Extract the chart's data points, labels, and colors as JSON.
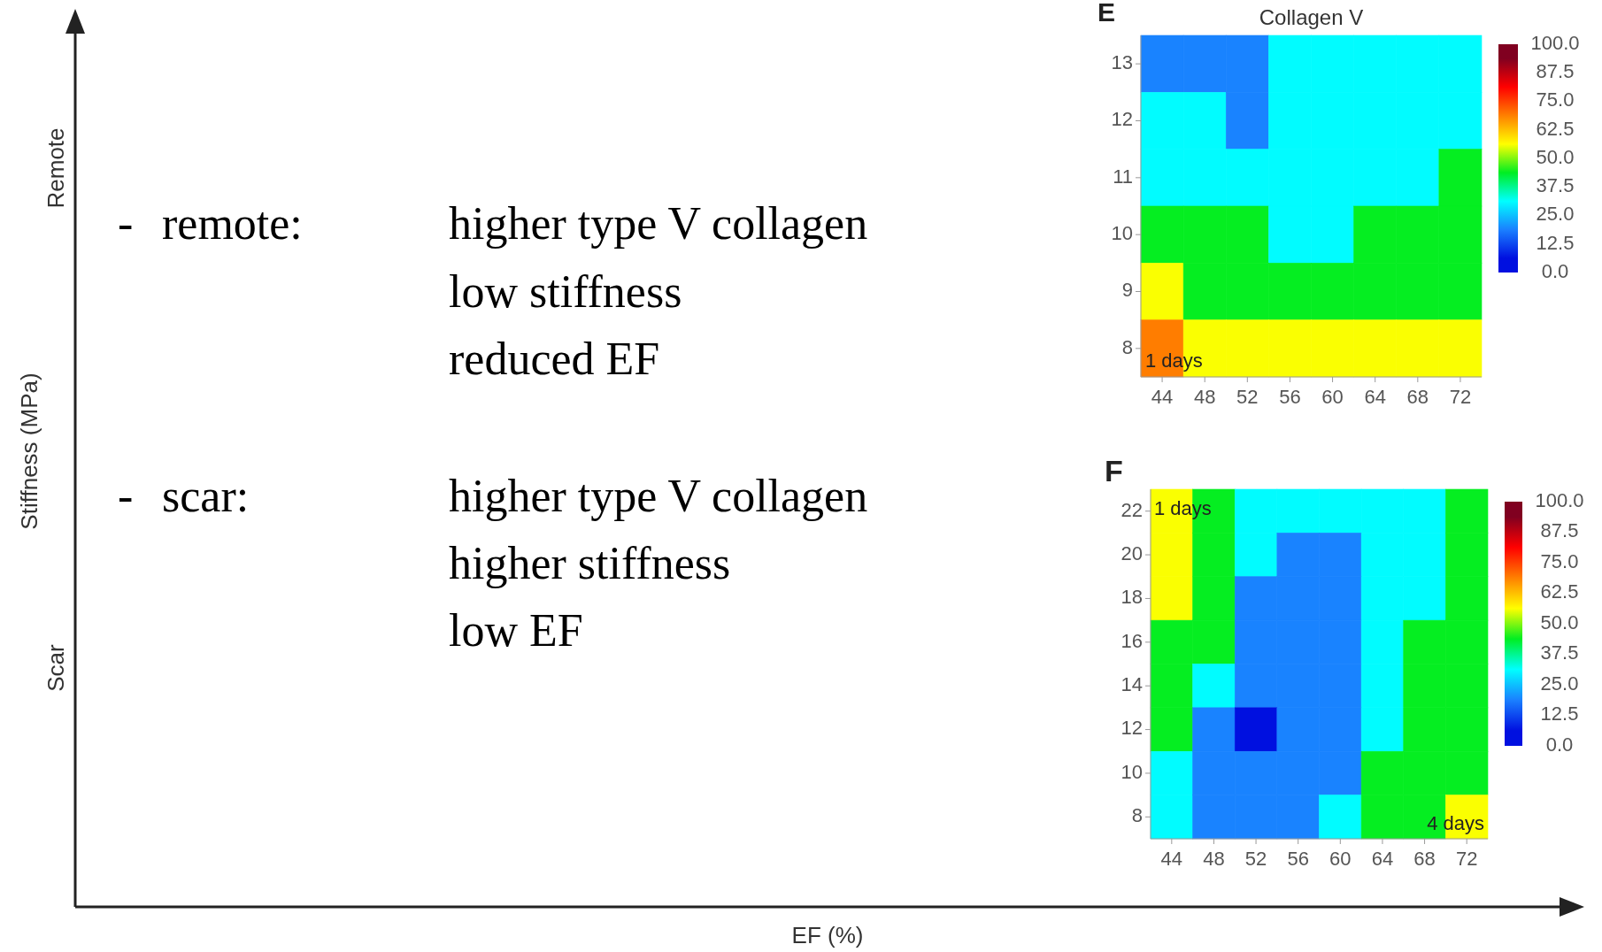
{
  "chart_data": [
    {
      "type": "other",
      "xlabel": "EF (%)",
      "ylabel": "Stiffness (MPa)",
      "annotations": [
        "Remote",
        "Scar",
        "-",
        "remote:",
        "higher type V collagen",
        "low stiffness",
        "reduced EF",
        "-",
        "scar:",
        "higher type V collagen",
        "higher stiffness",
        "low EF"
      ]
    },
    {
      "type": "heatmap",
      "title": "Collagen V",
      "annotations": [
        "E",
        "1 days"
      ],
      "categories": [
        "44",
        "48",
        "52",
        "56",
        "60",
        "64",
        "68",
        "72"
      ],
      "y_categories": [
        "13",
        "12",
        "11",
        "10",
        "9",
        "8"
      ],
      "cells": [
        [
          19,
          19,
          19,
          31,
          31,
          31,
          31,
          31
        ],
        [
          31,
          31,
          19,
          31,
          31,
          31,
          31,
          31
        ],
        [
          31,
          31,
          31,
          31,
          31,
          31,
          31,
          44
        ],
        [
          44,
          44,
          44,
          31,
          31,
          44,
          44,
          44
        ],
        [
          56,
          44,
          44,
          44,
          44,
          44,
          44,
          44
        ],
        [
          69,
          56,
          56,
          56,
          56,
          56,
          56,
          56
        ]
      ],
      "clim": [
        0,
        100
      ],
      "colors": [
        "#0010e0",
        "#1a80ff",
        "#00ffff",
        "#00ee22",
        "#ffff00",
        "#ff8000",
        "#ff0000",
        "#800020"
      ],
      "cticks": [
        {
          "value": 0,
          "label": "0.0"
        },
        {
          "value": 12.5,
          "label": "12.5"
        },
        {
          "value": 25,
          "label": "25.0"
        },
        {
          "value": 37.5,
          "label": "37.5"
        },
        {
          "value": 50,
          "label": "50.0"
        },
        {
          "value": 62.5,
          "label": "62.5"
        },
        {
          "value": 75,
          "label": "75.0"
        },
        {
          "value": 87.5,
          "label": "87.5"
        },
        {
          "value": 100,
          "label": "100.0"
        }
      ]
    },
    {
      "type": "heatmap",
      "annotations": [
        "F",
        "1 days",
        "4 days"
      ],
      "categories": [
        "44",
        "48",
        "52",
        "56",
        "60",
        "64",
        "68",
        "72"
      ],
      "y_categories": [
        "22",
        "20",
        "18",
        "16",
        "14",
        "12",
        "10",
        "8"
      ],
      "cells": [
        [
          56,
          44,
          31,
          31,
          31,
          31,
          31,
          44
        ],
        [
          56,
          44,
          31,
          19,
          19,
          31,
          31,
          44
        ],
        [
          56,
          44,
          19,
          19,
          19,
          31,
          31,
          44
        ],
        [
          44,
          44,
          19,
          19,
          19,
          31,
          44,
          44
        ],
        [
          44,
          31,
          19,
          19,
          19,
          31,
          44,
          44
        ],
        [
          44,
          19,
          6,
          19,
          19,
          31,
          44,
          44
        ],
        [
          31,
          19,
          19,
          19,
          19,
          44,
          44,
          44
        ],
        [
          31,
          19,
          19,
          19,
          31,
          44,
          44,
          56
        ]
      ],
      "clim": [
        0,
        100
      ],
      "colors": [
        "#0010e0",
        "#1a80ff",
        "#00ffff",
        "#00ee22",
        "#ffff00",
        "#ff8000",
        "#ff0000",
        "#800020"
      ],
      "cticks": [
        {
          "value": 0,
          "label": "0.0"
        },
        {
          "value": 12.5,
          "label": "12.5"
        },
        {
          "value": 25,
          "label": "25.0"
        },
        {
          "value": 37.5,
          "label": "37.5"
        },
        {
          "value": 50,
          "label": "50.0"
        },
        {
          "value": 62.5,
          "label": "62.5"
        },
        {
          "value": 75,
          "label": "75.0"
        },
        {
          "value": 87.5,
          "label": "87.5"
        },
        {
          "value": 100,
          "label": "100.0"
        }
      ]
    }
  ]
}
